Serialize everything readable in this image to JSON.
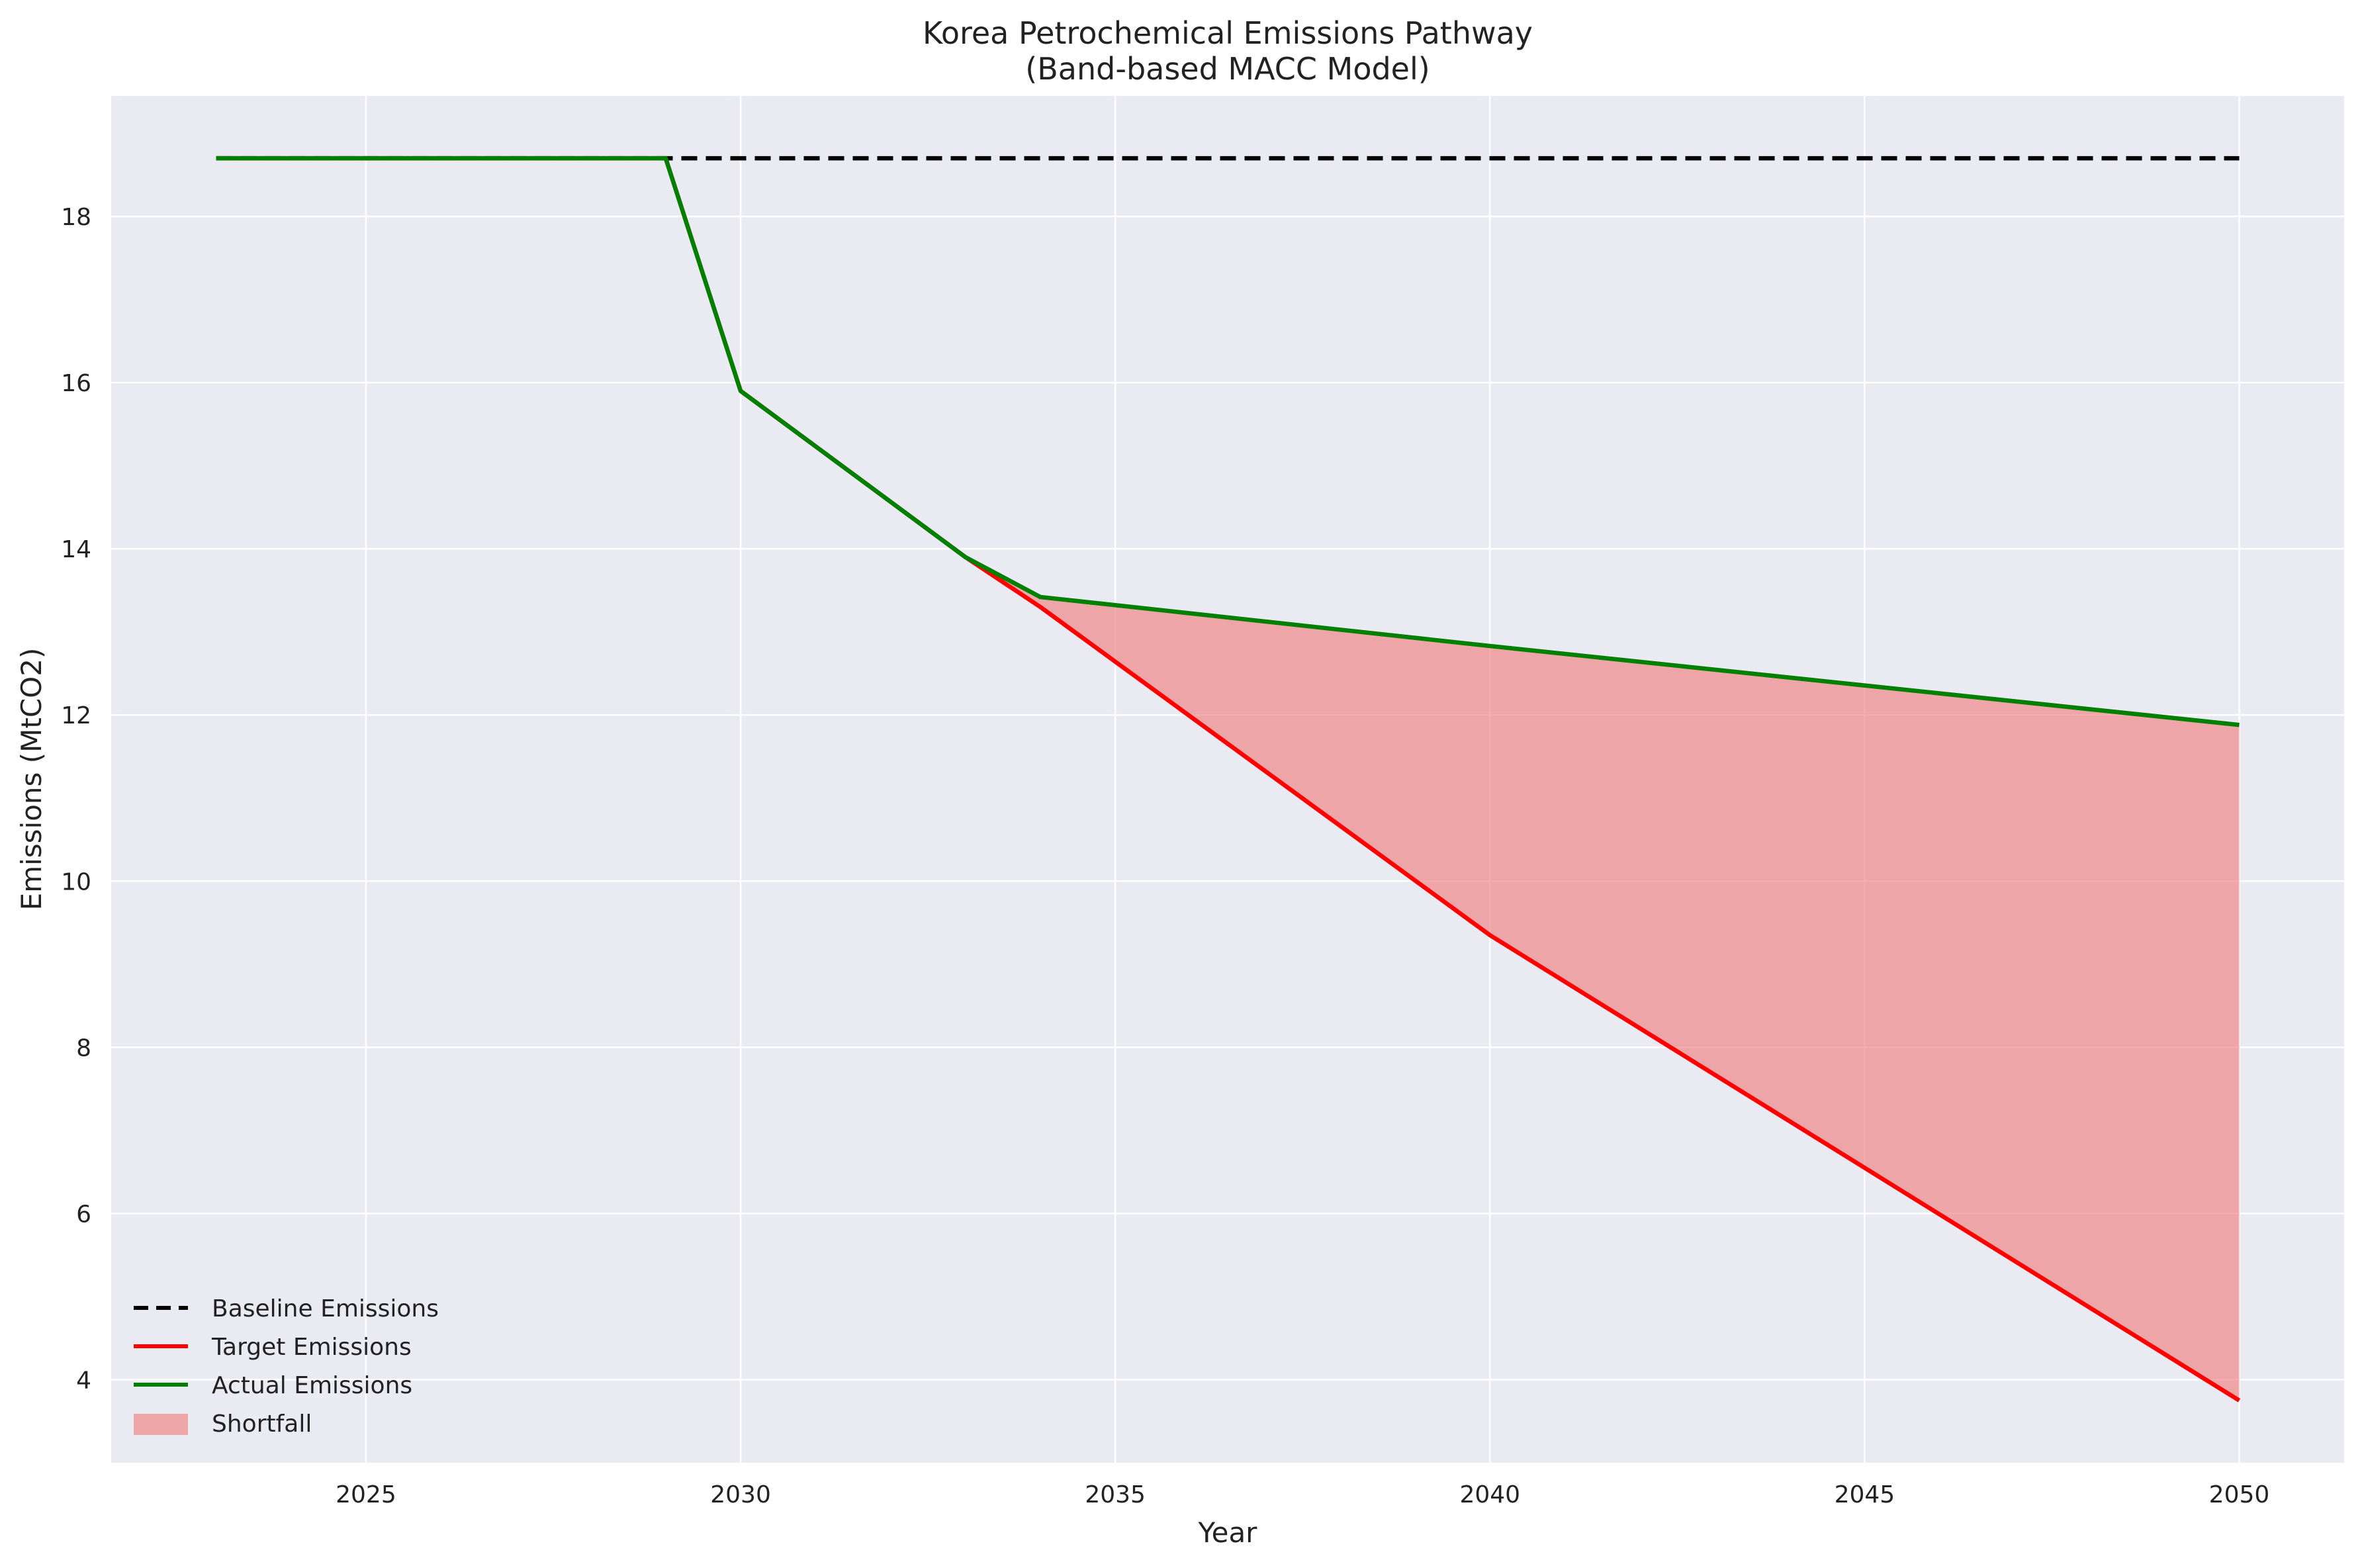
{
  "chart_data": {
    "type": "line",
    "title": "Korea Petrochemical Emissions Pathway",
    "subtitle": "(Band-based MACC Model)",
    "xlabel": "Year",
    "ylabel": "Emissions (MtCO2)",
    "xlim": [
      2021.6,
      2051.4
    ],
    "ylim": [
      3.0,
      19.45
    ],
    "xticks": [
      2025,
      2030,
      2035,
      2040,
      2045,
      2050
    ],
    "yticks": [
      4,
      6,
      8,
      10,
      12,
      14,
      16,
      18
    ],
    "grid": true,
    "legend_position": "lower-left",
    "series": [
      {
        "name": "Baseline Emissions",
        "style": "dashed",
        "color": "#000000",
        "x": [
          2023,
          2050
        ],
        "y": [
          18.7,
          18.7
        ]
      },
      {
        "name": "Target Emissions",
        "style": "solid",
        "color": "#ff0000",
        "x": [
          2023,
          2029,
          2030,
          2033,
          2034,
          2040,
          2050
        ],
        "y": [
          18.7,
          18.7,
          15.9,
          13.9,
          13.3,
          9.35,
          3.75
        ]
      },
      {
        "name": "Actual Emissions",
        "style": "solid",
        "color": "#008000",
        "x": [
          2023,
          2029,
          2030,
          2033,
          2034,
          2040,
          2050
        ],
        "y": [
          18.7,
          18.7,
          15.9,
          13.9,
          13.42,
          12.83,
          11.88
        ]
      }
    ],
    "fill": {
      "name": "Shortfall",
      "color": "#f08080",
      "between": [
        "Target Emissions",
        "Actual Emissions"
      ]
    }
  }
}
